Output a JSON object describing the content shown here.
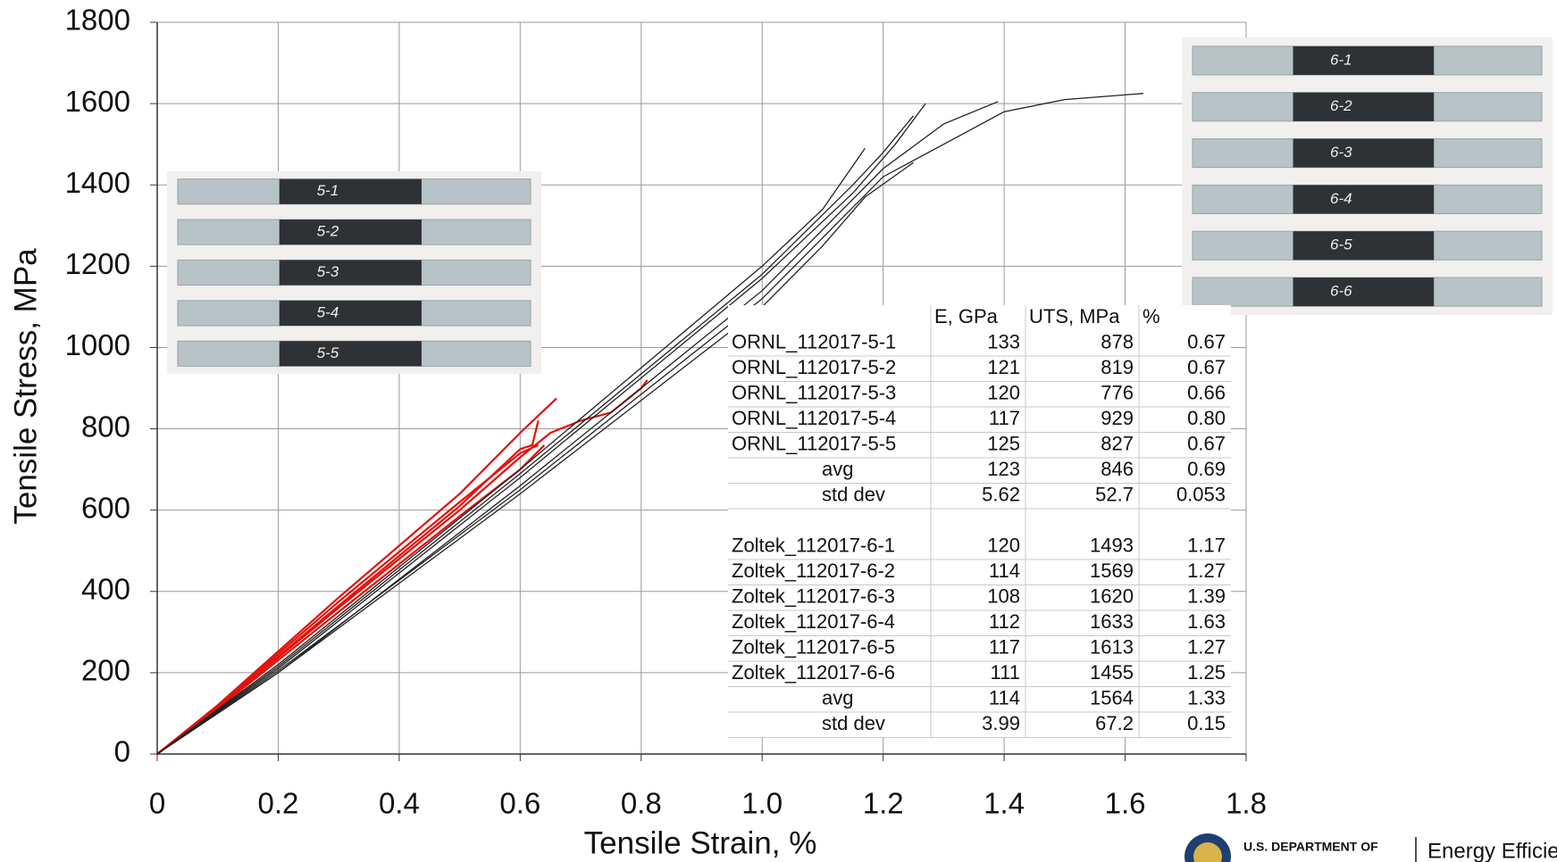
{
  "chart_data": {
    "type": "line",
    "x_label": "Tensile Strain, %",
    "y_label": "Tensile Stress, MPa",
    "xlim": [
      0,
      1.8
    ],
    "ylim": [
      0,
      1800
    ],
    "xticks": [
      0,
      0.2,
      0.4,
      0.6,
      0.8,
      {
        "value": 1,
        "label": "1.0"
      },
      1.2,
      1.4,
      1.6,
      1.8
    ],
    "yticks": [
      0,
      200,
      400,
      600,
      800,
      1000,
      1200,
      1400,
      1600,
      1800
    ],
    "grid": true,
    "series": [
      {
        "color": "#e3120b",
        "x": [
          0,
          0.1,
          0.3,
          0.5,
          0.6,
          0.66
        ],
        "values": [
          0,
          120,
          385,
          640,
          790,
          875
        ]
      },
      {
        "color": "#e3120b",
        "x": [
          0,
          0.1,
          0.3,
          0.5,
          0.6,
          0.65,
          0.7,
          0.75,
          0.8,
          0.81
        ],
        "values": [
          0,
          115,
          360,
          600,
          730,
          790,
          820,
          840,
          900,
          920
        ]
      },
      {
        "color": "#e3120b",
        "x": [
          0,
          0.1,
          0.3,
          0.5,
          0.6,
          0.62,
          0.63
        ],
        "values": [
          0,
          115,
          365,
          610,
          750,
          760,
          820
        ]
      },
      {
        "color": "#e3120b",
        "x": [
          0,
          0.1,
          0.3,
          0.5,
          0.6,
          0.64
        ],
        "values": [
          0,
          112,
          350,
          585,
          700,
          760
        ]
      },
      {
        "color": "#e3120b",
        "x": [
          0,
          0.1,
          0.3,
          0.5,
          0.6,
          0.63
        ],
        "values": [
          0,
          118,
          375,
          620,
          740,
          760
        ]
      },
      {
        "color": "#222222",
        "x": [
          0,
          0.2,
          0.6,
          1.0,
          1.1,
          1.17
        ],
        "values": [
          0,
          220,
          700,
          1200,
          1340,
          1490
        ]
      },
      {
        "color": "#222222",
        "x": [
          0,
          0.2,
          0.6,
          1.0,
          1.15,
          1.22,
          1.27
        ],
        "values": [
          0,
          210,
          680,
          1170,
          1380,
          1500,
          1600
        ]
      },
      {
        "color": "#222222",
        "x": [
          0,
          0.2,
          0.6,
          1.0,
          1.2,
          1.3,
          1.39
        ],
        "values": [
          0,
          200,
          660,
          1140,
          1440,
          1550,
          1605
        ]
      },
      {
        "color": "#222222",
        "x": [
          0,
          0.2,
          0.6,
          1.0,
          1.2,
          1.3,
          1.4,
          1.5,
          1.63
        ],
        "values": [
          0,
          205,
          650,
          1120,
          1420,
          1500,
          1580,
          1610,
          1625
        ]
      },
      {
        "color": "#222222",
        "x": [
          0,
          0.2,
          0.6,
          1.0,
          1.15,
          1.2,
          1.25
        ],
        "values": [
          0,
          215,
          690,
          1180,
          1400,
          1480,
          1570
        ]
      },
      {
        "color": "#222222",
        "x": [
          0,
          0.2,
          0.6,
          1.0,
          1.1,
          1.17,
          1.25
        ],
        "values": [
          0,
          200,
          640,
          1100,
          1250,
          1370,
          1455
        ]
      }
    ]
  },
  "table": {
    "header": [
      "E, GPa",
      "UTS, MPa",
      "%"
    ],
    "groups": [
      {
        "rows": [
          [
            "ORNL_112017-5-1",
            "133",
            "878",
            "0.67"
          ],
          [
            "ORNL_112017-5-2",
            "121",
            "819",
            "0.67"
          ],
          [
            "ORNL_112017-5-3",
            "120",
            "776",
            "0.66"
          ],
          [
            "ORNL_112017-5-4",
            "117",
            "929",
            "0.80"
          ],
          [
            "ORNL_112017-5-5",
            "125",
            "827",
            "0.67"
          ]
        ],
        "summary": [
          [
            "avg",
            "123",
            "846",
            "0.69"
          ],
          [
            "std dev",
            "5.62",
            "52.7",
            "0.053"
          ]
        ]
      },
      {
        "rows": [
          [
            "Zoltek_112017-6-1",
            "120",
            "1493",
            "1.17"
          ],
          [
            "Zoltek_112017-6-2",
            "114",
            "1569",
            "1.27"
          ],
          [
            "Zoltek_112017-6-3",
            "108",
            "1620",
            "1.39"
          ],
          [
            "Zoltek_112017-6-4",
            "112",
            "1633",
            "1.63"
          ],
          [
            "Zoltek_112017-6-5",
            "117",
            "1613",
            "1.27"
          ],
          [
            "Zoltek_112017-6-6",
            "111",
            "1455",
            "1.25"
          ]
        ],
        "summary": [
          [
            "avg",
            "114",
            "1564",
            "1.33"
          ],
          [
            "std dev",
            "3.99",
            "67.2",
            "0.15"
          ]
        ]
      }
    ]
  },
  "photos": {
    "left_labels": [
      "5-1",
      "5-2",
      "5-3",
      "5-4",
      "5-5"
    ],
    "right_labels": [
      "6-1",
      "6-2",
      "6-3",
      "6-4",
      "6-5",
      "6-6"
    ]
  },
  "footer": {
    "agency": "U.S. DEPARTMENT OF",
    "office": "Energy Efficie"
  }
}
